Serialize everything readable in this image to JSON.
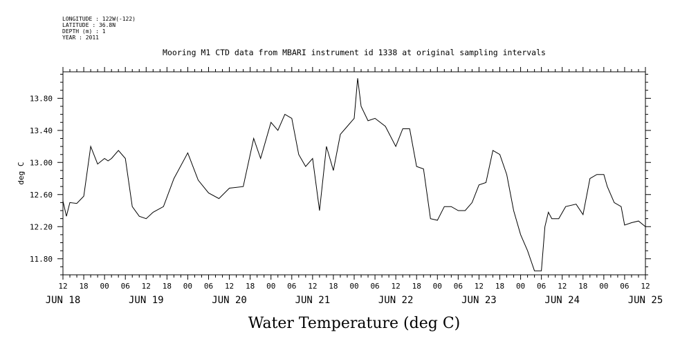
{
  "header": {
    "meta_lines": [
      "LONGITUDE : 122W(-122)",
      "LATITUDE : 36.8N",
      "DEPTH (m) : 1",
      "YEAR : 2011"
    ],
    "title": "Mooring M1 CTD data from MBARI instrument id 1338 at original sampling intervals"
  },
  "chart_data": {
    "type": "line",
    "title": "Mooring M1 CTD data from MBARI instrument id 1338 at original sampling intervals",
    "xlabel": "Water Temperature (deg C)",
    "ylabel": "deg C",
    "ylim": [
      11.6,
      14.13
    ],
    "y_ticks": [
      "13.80",
      "13.40",
      "13.00",
      "12.60",
      "12.20",
      "11.80"
    ],
    "x_range": [
      "2011-06-18T12:00",
      "2011-06-25T12:00"
    ],
    "x_hour_labels": [
      "12",
      "18",
      "00",
      "06",
      "12",
      "18",
      "00",
      "06",
      "12",
      "18",
      "00",
      "06",
      "12",
      "18",
      "00",
      "06",
      "12",
      "18",
      "00",
      "06",
      "12",
      "18",
      "00",
      "06",
      "12",
      "18",
      "00",
      "06",
      "12"
    ],
    "x_date_labels": [
      "JUN 18",
      "JUN 19",
      "JUN 20",
      "JUN 21",
      "JUN 22",
      "JUN 23",
      "JUN 24",
      "JUN 25"
    ],
    "grid": false,
    "series": [
      {
        "color": "#000000",
        "x": [
          "2011-06-18T12:00",
          "2011-06-18T13:00",
          "2011-06-18T14:00",
          "2011-06-18T16:00",
          "2011-06-18T18:00",
          "2011-06-18T20:00",
          "2011-06-18T22:00",
          "2011-06-19T00:00",
          "2011-06-19T01:00",
          "2011-06-19T02:00",
          "2011-06-19T04:00",
          "2011-06-19T06:00",
          "2011-06-19T08:00",
          "2011-06-19T10:00",
          "2011-06-19T12:00",
          "2011-06-19T14:00",
          "2011-06-19T17:00",
          "2011-06-19T20:00",
          "2011-06-20T00:00",
          "2011-06-20T03:00",
          "2011-06-20T06:00",
          "2011-06-20T09:00",
          "2011-06-20T12:00",
          "2011-06-20T16:00",
          "2011-06-20T19:00",
          "2011-06-20T21:00",
          "2011-06-21T00:00",
          "2011-06-21T02:00",
          "2011-06-21T04:00",
          "2011-06-21T06:00",
          "2011-06-21T08:00",
          "2011-06-21T10:00",
          "2011-06-21T12:00",
          "2011-06-21T14:00",
          "2011-06-21T16:00",
          "2011-06-21T18:00",
          "2011-06-21T20:00",
          "2011-06-21T22:00",
          "2011-06-22T00:00",
          "2011-06-22T01:00",
          "2011-06-22T02:00",
          "2011-06-22T04:00",
          "2011-06-22T06:00",
          "2011-06-22T09:00",
          "2011-06-22T12:00",
          "2011-06-22T14:00",
          "2011-06-22T16:00",
          "2011-06-22T18:00",
          "2011-06-22T20:00",
          "2011-06-22T22:00",
          "2011-06-23T00:00",
          "2011-06-23T02:00",
          "2011-06-23T04:00",
          "2011-06-23T06:00",
          "2011-06-23T08:00",
          "2011-06-23T10:00",
          "2011-06-23T12:00",
          "2011-06-23T14:00",
          "2011-06-23T16:00",
          "2011-06-23T18:00",
          "2011-06-23T20:00",
          "2011-06-23T22:00",
          "2011-06-24T00:00",
          "2011-06-24T02:00",
          "2011-06-24T04:00",
          "2011-06-24T06:00",
          "2011-06-24T07:00",
          "2011-06-24T08:00",
          "2011-06-24T09:00",
          "2011-06-24T11:00",
          "2011-06-24T13:00",
          "2011-06-24T16:00",
          "2011-06-24T18:00",
          "2011-06-24T20:00",
          "2011-06-24T22:00",
          "2011-06-25T00:00",
          "2011-06-25T01:00",
          "2011-06-25T03:00",
          "2011-06-25T05:00",
          "2011-06-25T06:00",
          "2011-06-25T08:00",
          "2011-06-25T10:00",
          "2011-06-25T12:00"
        ],
        "y": [
          12.52,
          12.33,
          12.5,
          12.49,
          12.58,
          13.2,
          12.98,
          13.05,
          13.02,
          13.05,
          13.15,
          13.05,
          12.45,
          12.33,
          12.3,
          12.38,
          12.45,
          12.8,
          13.12,
          12.78,
          12.62,
          12.55,
          12.68,
          12.7,
          13.3,
          13.05,
          13.5,
          13.4,
          13.6,
          13.55,
          13.1,
          12.95,
          13.05,
          12.4,
          13.2,
          12.9,
          13.35,
          13.45,
          13.55,
          14.05,
          13.7,
          13.52,
          13.55,
          13.45,
          13.2,
          13.42,
          13.42,
          12.95,
          12.92,
          12.3,
          12.28,
          12.45,
          12.45,
          12.4,
          12.4,
          12.5,
          12.72,
          12.75,
          13.15,
          13.1,
          12.85,
          12.4,
          12.1,
          11.9,
          11.65,
          11.65,
          12.2,
          12.38,
          12.3,
          12.3,
          12.45,
          12.48,
          12.35,
          12.8,
          12.85,
          12.85,
          12.7,
          12.5,
          12.45,
          12.22,
          12.25,
          12.27,
          12.2
        ]
      }
    ]
  }
}
